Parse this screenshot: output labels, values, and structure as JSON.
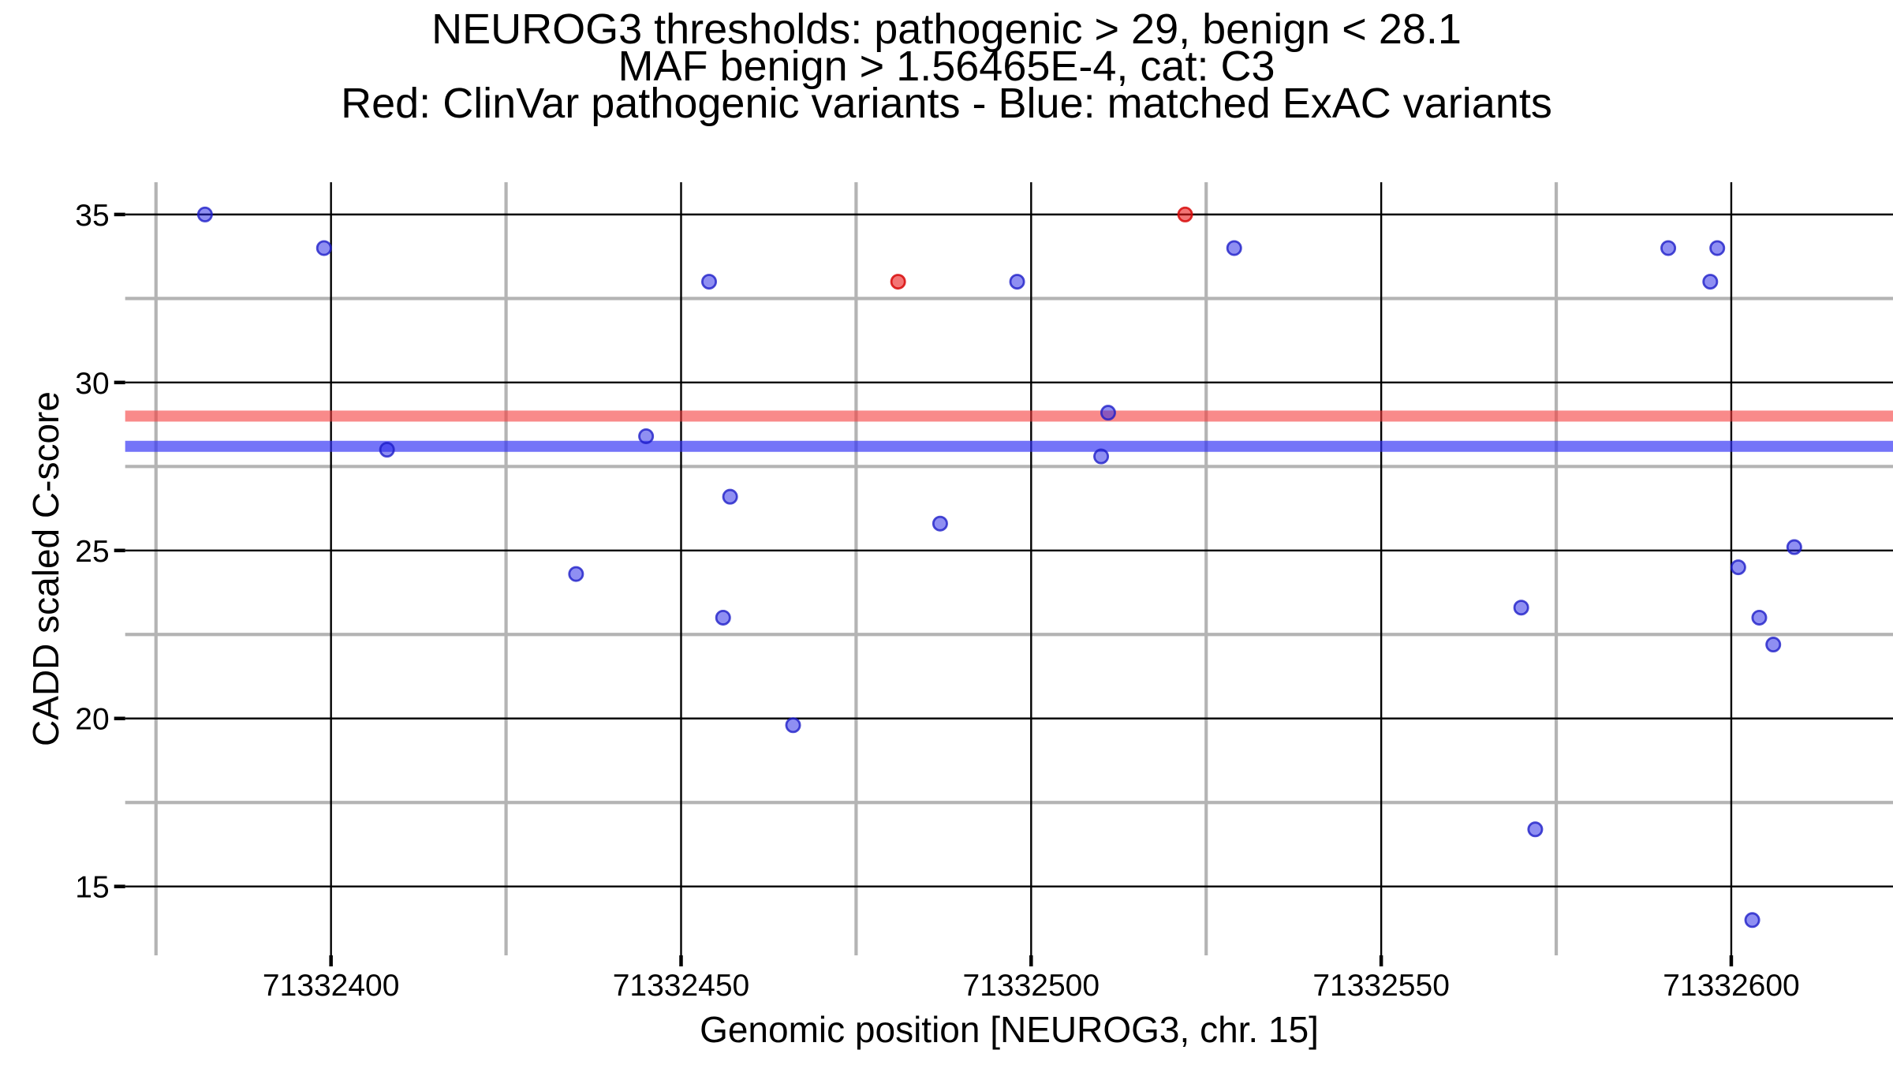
{
  "chart_data": {
    "type": "scatter",
    "title_lines": [
      "NEUROG3 thresholds: pathogenic > 29, benign < 28.1",
      "MAF benign > 1.56465E-4, cat: C3",
      "Red: ClinVar pathogenic variants - Blue: matched ExAC variants"
    ],
    "xlabel": "Genomic position [NEUROG3, chr. 15]",
    "ylabel": "CADD scaled C-score",
    "x_ticks": [
      71332400,
      71332450,
      71332500,
      71332550,
      71332600
    ],
    "x_minor_ticks": [
      71332375,
      71332425,
      71332475,
      71332525,
      71332575
    ],
    "y_ticks": [
      15,
      20,
      25,
      30,
      35
    ],
    "y_minor_ticks": [
      17.5,
      22.5,
      27.5,
      32.5
    ],
    "xlim": [
      71332370.6,
      71332623.1
    ],
    "ylim": [
      12.95,
      35.96
    ],
    "grid": {
      "major_color": "#000000",
      "minor_color": "#b4b4b4",
      "background": "#ffffff"
    },
    "legend_position": "none",
    "thresholds": [
      {
        "name": "pathogenic",
        "value": 29,
        "label": "pathogenic > 29",
        "band_color": "rgba(245,60,60,0.60)"
      },
      {
        "name": "benign",
        "value": 28.1,
        "label": "benign < 28.1",
        "band_color": "rgba(50,50,245,0.68)"
      }
    ],
    "series": [
      {
        "name": "ClinVar pathogenic variants",
        "color_key": "red",
        "fill": "rgba(235,25,25,0.60)",
        "stroke": "rgba(215,10,10,0.85)",
        "points": [
          [
            71332481,
            33.0
          ],
          [
            71332522,
            35.0
          ]
        ]
      },
      {
        "name": "matched ExAC variants",
        "color_key": "blue",
        "fill": "rgba(40,40,230,0.52)",
        "stroke": "rgba(30,30,200,0.80)",
        "points": [
          [
            71332382,
            35.0
          ],
          [
            71332399,
            34.0
          ],
          [
            71332408,
            28.0
          ],
          [
            71332435,
            24.3
          ],
          [
            71332445,
            28.4
          ],
          [
            71332454,
            33.0
          ],
          [
            71332456,
            23.0
          ],
          [
            71332457,
            26.6
          ],
          [
            71332466,
            19.8
          ],
          [
            71332487,
            25.8
          ],
          [
            71332498,
            33.0
          ],
          [
            71332510,
            27.8
          ],
          [
            71332511,
            29.1
          ],
          [
            71332529,
            34.0
          ],
          [
            71332570,
            23.3
          ],
          [
            71332572,
            16.7
          ],
          [
            71332591,
            34.0
          ],
          [
            71332597,
            33.0
          ],
          [
            71332598,
            34.0
          ],
          [
            71332601,
            24.5
          ],
          [
            71332603,
            14.0
          ],
          [
            71332604,
            23.0
          ],
          [
            71332606,
            22.2
          ],
          [
            71332609,
            25.1
          ]
        ]
      }
    ]
  }
}
